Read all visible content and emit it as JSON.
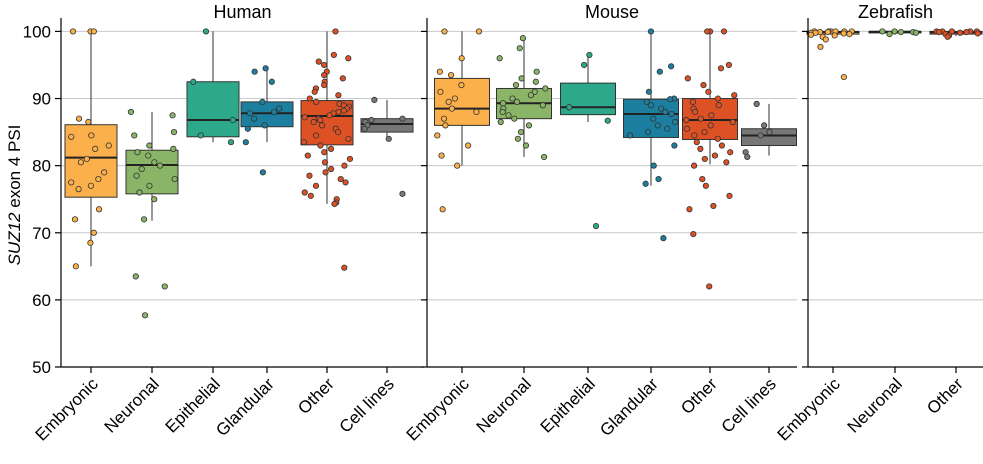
{
  "chart_data": {
    "type": "box",
    "ylabel_italic": "SUZ12",
    "ylabel_rest": "exon 4 PSI",
    "ylim": [
      50,
      102
    ],
    "yticks": [
      50,
      60,
      70,
      80,
      90,
      100
    ],
    "grid": true,
    "panels": [
      {
        "title": "Human",
        "groups": [
          {
            "category": "Embryonic",
            "color": "#fbb04b",
            "q1": 75.3,
            "median": 81.2,
            "q3": 86.1,
            "whisker_low": 65.0,
            "whisker_high": 100,
            "points": [
              100,
              100,
              100,
              87,
              86.5,
              84.5,
              84.3,
              83,
              82.5,
              81,
              80.5,
              79,
              78,
              77.5,
              77,
              76.5,
              73.5,
              72,
              70,
              68.5,
              65
            ]
          },
          {
            "category": "Neuronal",
            "color": "#8ab567",
            "q1": 75.8,
            "median": 80.1,
            "q3": 82.3,
            "whisker_low": 71.8,
            "whisker_high": 88,
            "points": [
              88,
              87.5,
              85,
              84.5,
              83,
              82.5,
              82,
              81.5,
              80.5,
              80,
              79.5,
              78.5,
              78,
              77,
              76,
              75,
              72,
              63.5,
              62,
              57.7
            ]
          },
          {
            "category": "Epithelial",
            "color": "#2ea88a",
            "q1": 84.3,
            "median": 86.8,
            "q3": 92.5,
            "whisker_low": 83.5,
            "whisker_high": 100,
            "points": [
              100,
              92.5,
              86.8,
              84.5,
              83.5
            ]
          },
          {
            "category": "Glandular",
            "color": "#1c7f9f",
            "q1": 85.8,
            "median": 87.8,
            "q3": 89.5,
            "whisker_low": 83.5,
            "whisker_high": 94.5,
            "points": [
              94.5,
              94,
              92.5,
              89.5,
              88.5,
              88,
              87.8,
              87,
              86,
              85.5,
              83.5,
              79
            ]
          },
          {
            "category": "Other",
            "color": "#dd5125",
            "q1": 83.1,
            "median": 87.4,
            "q3": 89.7,
            "whisker_low": 74.3,
            "whisker_high": 100,
            "points": [
              100,
              96.5,
              96,
              95.5,
              95,
              94,
              93.5,
              93,
              92.5,
              92,
              91.5,
              91,
              90.5,
              90,
              89.5,
              89.2,
              89,
              88.8,
              88.5,
              88.2,
              88,
              87.8,
              87.5,
              87.2,
              87,
              86.8,
              86.5,
              86,
              85.5,
              85,
              84.5,
              84,
              83.5,
              83,
              82.5,
              82,
              81.5,
              81,
              80.5,
              80,
              79.5,
              79,
              78.5,
              78,
              77.5,
              77,
              76,
              75.5,
              75,
              74.5,
              74.3,
              64.8
            ]
          },
          {
            "category": "Cell lines",
            "color": "#777777",
            "q1": 85.0,
            "median": 86.2,
            "q3": 87.0,
            "whisker_low": 83.8,
            "whisker_high": 89.8,
            "points": [
              89.8,
              87,
              86.8,
              86.5,
              86,
              85.5,
              84,
              75.8
            ]
          }
        ]
      },
      {
        "title": "Mouse",
        "groups": [
          {
            "category": "Embryonic",
            "color": "#fbb04b",
            "q1": 86.0,
            "median": 88.5,
            "q3": 93.0,
            "whisker_low": 80.0,
            "whisker_high": 100,
            "points": [
              100,
              100,
              96,
              94,
              93.5,
              92,
              91,
              90,
              89.5,
              88.5,
              88,
              87,
              86,
              84.5,
              83,
              81.5,
              80,
              73.5
            ]
          },
          {
            "category": "Neuronal",
            "color": "#8ab567",
            "q1": 87.0,
            "median": 89.3,
            "q3": 91.5,
            "whisker_low": 81.3,
            "whisker_high": 99,
            "points": [
              99,
              97.5,
              96,
              94,
              93,
              92.5,
              92,
              91.5,
              91,
              90.5,
              90,
              89.5,
              89.3,
              89,
              88.5,
              88,
              87.5,
              87,
              86.5,
              86,
              85,
              84,
              83,
              81.3
            ]
          },
          {
            "category": "Epithelial",
            "color": "#2ea88a",
            "q1": 87.6,
            "median": 88.7,
            "q3": 92.3,
            "whisker_low": 86.5,
            "whisker_high": 96.5,
            "points": [
              96.5,
              95,
              88.7,
              86.7,
              71
            ]
          },
          {
            "category": "Glandular",
            "color": "#1c7f9f",
            "q1": 84.2,
            "median": 87.7,
            "q3": 89.9,
            "whisker_low": 77.0,
            "whisker_high": 100,
            "points": [
              100,
              94.8,
              94,
              91,
              90,
              89.9,
              89.5,
              89,
              88.5,
              88,
              87.7,
              87,
              86.5,
              86,
              85.5,
              85,
              84.5,
              83,
              80,
              78,
              77.3,
              69.2
            ]
          },
          {
            "category": "Other",
            "color": "#dd5125",
            "q1": 83.9,
            "median": 86.8,
            "q3": 90.0,
            "whisker_low": 80.2,
            "whisker_high": 100,
            "points": [
              100,
              100,
              100,
              95,
              94.5,
              93,
              92,
              91,
              90.5,
              90,
              89.5,
              89,
              88.5,
              88,
              87.5,
              87,
              86.8,
              86.5,
              86,
              85.5,
              85,
              84.5,
              84,
              83.5,
              83,
              82.5,
              82,
              81.5,
              81,
              80.5,
              80,
              78,
              77,
              75.5,
              74,
              73.5,
              69.8,
              62
            ]
          },
          {
            "category": "Cell lines",
            "color": "#777777",
            "q1": 83.0,
            "median": 84.5,
            "q3": 85.5,
            "whisker_low": 81.5,
            "whisker_high": 89.2,
            "points": [
              89.2,
              86,
              85,
              84.5,
              82,
              81.3
            ]
          }
        ]
      },
      {
        "title": "Zebrafish",
        "groups": [
          {
            "category": "Embryonic",
            "color": "#fbb04b",
            "q1": 99.6,
            "median": 99.9,
            "q3": 100.0,
            "whisker_low": 99.0,
            "whisker_high": 100,
            "points": [
              100,
              100,
              100,
              100,
              100,
              100,
              99.9,
              99.9,
              99.8,
              99.8,
              99.7,
              99.6,
              99.5,
              99.4,
              99.2,
              98.8,
              97.7,
              93.2
            ]
          },
          {
            "category": "Neuronal",
            "color": "#8ab567",
            "q1": 99.8,
            "median": 99.95,
            "q3": 100.0,
            "whisker_low": 99.5,
            "whisker_high": 100,
            "points": [
              100,
              100,
              99.9,
              99.9,
              99.8,
              99.6
            ]
          },
          {
            "category": "Other",
            "color": "#dd5125",
            "q1": 99.6,
            "median": 99.9,
            "q3": 100.0,
            "whisker_low": 99.3,
            "whisker_high": 100,
            "points": [
              100,
              100,
              100,
              100,
              100,
              99.9,
              99.9,
              99.8,
              99.7,
              99.6,
              99.4,
              99.2
            ]
          }
        ]
      }
    ]
  }
}
